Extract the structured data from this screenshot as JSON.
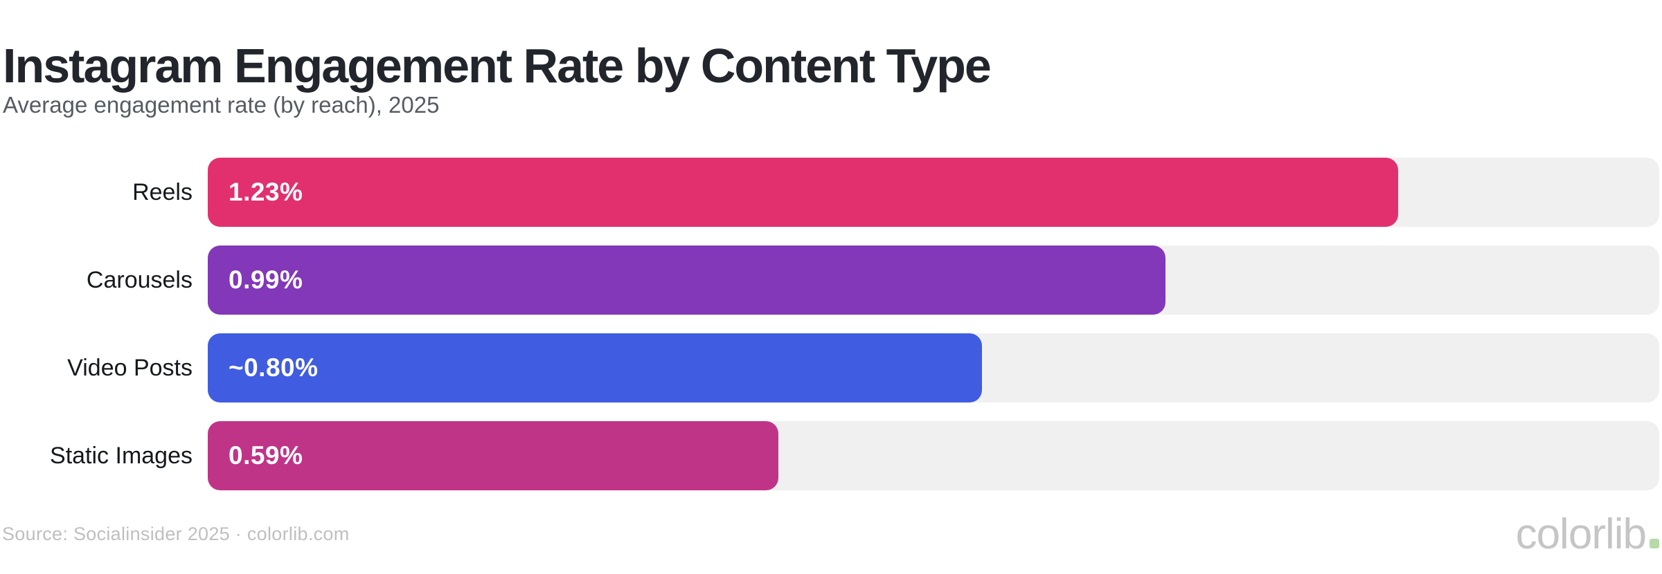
{
  "chart_data": {
    "type": "bar",
    "orientation": "horizontal",
    "title": "Instagram Engagement Rate by Content Type",
    "subtitle": "Average engagement rate (by reach), 2025",
    "categories": [
      "Reels",
      "Carousels",
      "Video Posts",
      "Static Images"
    ],
    "values": [
      1.23,
      0.99,
      0.8,
      0.59
    ],
    "value_labels": [
      "1.23%",
      "0.99%",
      "~0.80%",
      "0.59%"
    ],
    "bar_colors": [
      "#E2306E",
      "#8238B8",
      "#405CE0",
      "#C03488"
    ],
    "track_color": "#F0F0F0",
    "xlim": [
      0,
      1.5
    ],
    "grid": false,
    "legend": false,
    "value_label_position": "inside-left"
  },
  "footer": {
    "source": "Source: Socialinsider 2025 · colorlib.com",
    "logo_text": "colorlib",
    "logo_dot_color": "#B6DBA8"
  }
}
